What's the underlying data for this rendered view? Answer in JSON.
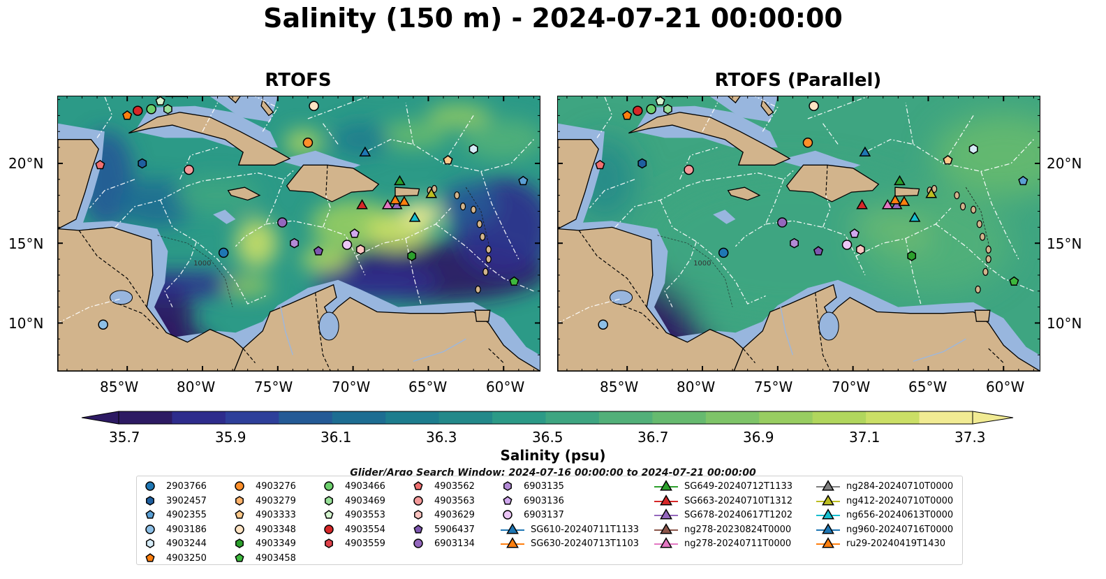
{
  "title": "Salinity (150 m) - 2024-07-21 00:00:00",
  "panels": [
    {
      "title": "RTOFS",
      "style": "detailed"
    },
    {
      "title": "RTOFS (Parallel)",
      "style": "smooth"
    }
  ],
  "lat_labels": [
    "20°N",
    "15°N",
    "10°N"
  ],
  "lon_labels": [
    "85°W",
    "80°W",
    "75°W",
    "70°W",
    "65°W",
    "60°W"
  ],
  "colorbar": {
    "label": "Salinity (psu)",
    "ticks": [
      "35.7",
      "35.9",
      "36.1",
      "36.3",
      "36.5",
      "36.7",
      "36.9",
      "37.1",
      "37.3"
    ],
    "colors": [
      "#2d1a63",
      "#2e2c8c",
      "#2e3f9a",
      "#245a96",
      "#1d6d92",
      "#1d7d8e",
      "#23898a",
      "#2c9a87",
      "#3ea581",
      "#52b079",
      "#66ba6f",
      "#7ec468",
      "#98cd61",
      "#b1d65d",
      "#cbdf66",
      "#f1eb93"
    ]
  },
  "search_window": "Glider/Argo Search Window: 2024-07-16 00:00:00 to 2024-07-21 00:00:00",
  "contour_label": "1000",
  "legend": [
    {
      "label": "2903766",
      "marker": "circle",
      "color": "#1f77b4"
    },
    {
      "label": "3902457",
      "marker": "hexagon",
      "color": "#1f5f9f"
    },
    {
      "label": "4902355",
      "marker": "pentagon",
      "color": "#5a9fd4"
    },
    {
      "label": "4903186",
      "marker": "circle",
      "color": "#8dbfe6"
    },
    {
      "label": "4903244",
      "marker": "hexagon",
      "color": "#d6ecf8"
    },
    {
      "label": "4903250",
      "marker": "pentagon",
      "color": "#ff7f0e"
    },
    {
      "label": "4903276",
      "marker": "circle",
      "color": "#ff8f2a"
    },
    {
      "label": "4903279",
      "marker": "hexagon",
      "color": "#ffb36b"
    },
    {
      "label": "4903333",
      "marker": "pentagon",
      "color": "#ffc98a"
    },
    {
      "label": "4903348",
      "marker": "circle",
      "color": "#ffe4c4"
    },
    {
      "label": "4903349",
      "marker": "hexagon",
      "color": "#2ca02c"
    },
    {
      "label": "4903458",
      "marker": "pentagon",
      "color": "#3db83d"
    },
    {
      "label": "4903466",
      "marker": "circle",
      "color": "#6ccf6c"
    },
    {
      "label": "4903469",
      "marker": "hexagon",
      "color": "#98e098"
    },
    {
      "label": "4903553",
      "marker": "pentagon",
      "color": "#d5f5d0"
    },
    {
      "label": "4903554",
      "marker": "circle",
      "color": "#d62728"
    },
    {
      "label": "4903559",
      "marker": "hexagon",
      "color": "#e0424a"
    },
    {
      "label": "4903562",
      "marker": "pentagon",
      "color": "#f07070"
    },
    {
      "label": "4903563",
      "marker": "circle",
      "color": "#f49a9a"
    },
    {
      "label": "4903629",
      "marker": "hexagon",
      "color": "#fbc4c0"
    },
    {
      "label": "5906437",
      "marker": "pentagon",
      "color": "#7e57b0"
    },
    {
      "label": "6903134",
      "marker": "circle",
      "color": "#9467bd"
    },
    {
      "label": "6903135",
      "marker": "hexagon",
      "color": "#b38ad6"
    },
    {
      "label": "6903136",
      "marker": "pentagon",
      "color": "#d0a8ee"
    },
    {
      "label": "6903137",
      "marker": "circle",
      "color": "#ecc6f6"
    },
    {
      "label": "SG610-20240711T1133",
      "marker": "triangle",
      "color": "#1f77b4"
    },
    {
      "label": "SG630-20240713T1103",
      "marker": "triangle",
      "color": "#ff7f0e"
    },
    {
      "label": "SG649-20240712T1133",
      "marker": "triangle",
      "color": "#2ca02c"
    },
    {
      "label": "SG663-20240710T1312",
      "marker": "triangle",
      "color": "#d62728"
    },
    {
      "label": "SG678-20240617T1202",
      "marker": "triangle",
      "color": "#9467bd"
    },
    {
      "label": "ng278-20230824T0000",
      "marker": "triangle",
      "color": "#8c564b"
    },
    {
      "label": "ng278-20240711T0000",
      "marker": "triangle",
      "color": "#e377c2"
    },
    {
      "label": "ng284-20240710T0000",
      "marker": "triangle",
      "color": "#7f7f7f"
    },
    {
      "label": "ng412-20240710T0000",
      "marker": "triangle",
      "color": "#bcbd22"
    },
    {
      "label": "ng656-20240613T0000",
      "marker": "triangle",
      "color": "#17becf"
    },
    {
      "label": "ng960-20240716T0000",
      "marker": "triangle",
      "color": "#1f77b4"
    },
    {
      "label": "ru29-20240419T1430",
      "marker": "triangle",
      "color": "#ff7f0e"
    }
  ],
  "map_markers": [
    {
      "label": "4903250",
      "lon": -85.0,
      "lat": 23.0
    },
    {
      "label": "4903554",
      "lon": -84.3,
      "lat": 23.3
    },
    {
      "label": "4903466",
      "lon": -83.4,
      "lat": 23.4
    },
    {
      "label": "4903553",
      "lon": -82.8,
      "lat": 23.9
    },
    {
      "label": "4903469",
      "lon": -82.3,
      "lat": 23.4
    },
    {
      "label": "4903348",
      "lon": -72.6,
      "lat": 23.6
    },
    {
      "label": "4903276",
      "lon": -73.0,
      "lat": 21.3
    },
    {
      "label": "4903562",
      "lon": -86.8,
      "lat": 19.9
    },
    {
      "label": "3902457",
      "lon": -84.0,
      "lat": 20.0
    },
    {
      "label": "4903563",
      "lon": -80.9,
      "lat": 19.6
    },
    {
      "label": "ng960-20240716T0000",
      "lon": -69.2,
      "lat": 20.7
    },
    {
      "label": "4903333",
      "lon": -63.7,
      "lat": 20.2
    },
    {
      "label": "4903244",
      "lon": -62.0,
      "lat": 20.9
    },
    {
      "label": "4902355",
      "lon": -58.7,
      "lat": 18.9
    },
    {
      "label": "SG649-20240712T1133",
      "lon": -66.9,
      "lat": 18.9
    },
    {
      "label": "SG663-20240710T1312",
      "lon": -69.4,
      "lat": 17.4
    },
    {
      "label": "ng278-20240711T0000",
      "lon": -67.7,
      "lat": 17.4
    },
    {
      "label": "SG678-20240617T1202",
      "lon": -67.1,
      "lat": 17.4
    },
    {
      "label": "SG630-20240713T1103",
      "lon": -67.2,
      "lat": 17.7
    },
    {
      "label": "ru29-20240419T1430",
      "lon": -66.6,
      "lat": 17.6
    },
    {
      "label": "ng412-20240710T0000",
      "lon": -64.8,
      "lat": 18.1
    },
    {
      "label": "ng656-20240613T0000",
      "lon": -65.9,
      "lat": 16.6
    },
    {
      "label": "6903134",
      "lon": -74.7,
      "lat": 16.3
    },
    {
      "label": "6903135",
      "lon": -73.9,
      "lat": 15.0
    },
    {
      "label": "5906437",
      "lon": -72.3,
      "lat": 14.5
    },
    {
      "label": "6903136",
      "lon": -69.9,
      "lat": 15.6
    },
    {
      "label": "6903137",
      "lon": -70.4,
      "lat": 14.9
    },
    {
      "label": "4903629",
      "lon": -69.5,
      "lat": 14.6
    },
    {
      "label": "4903349",
      "lon": -66.1,
      "lat": 14.2
    },
    {
      "label": "2903766",
      "lon": -78.6,
      "lat": 14.4
    },
    {
      "label": "4903458",
      "lon": -59.3,
      "lat": 12.6
    },
    {
      "label": "4903186",
      "lon": -86.6,
      "lat": 9.9
    }
  ]
}
